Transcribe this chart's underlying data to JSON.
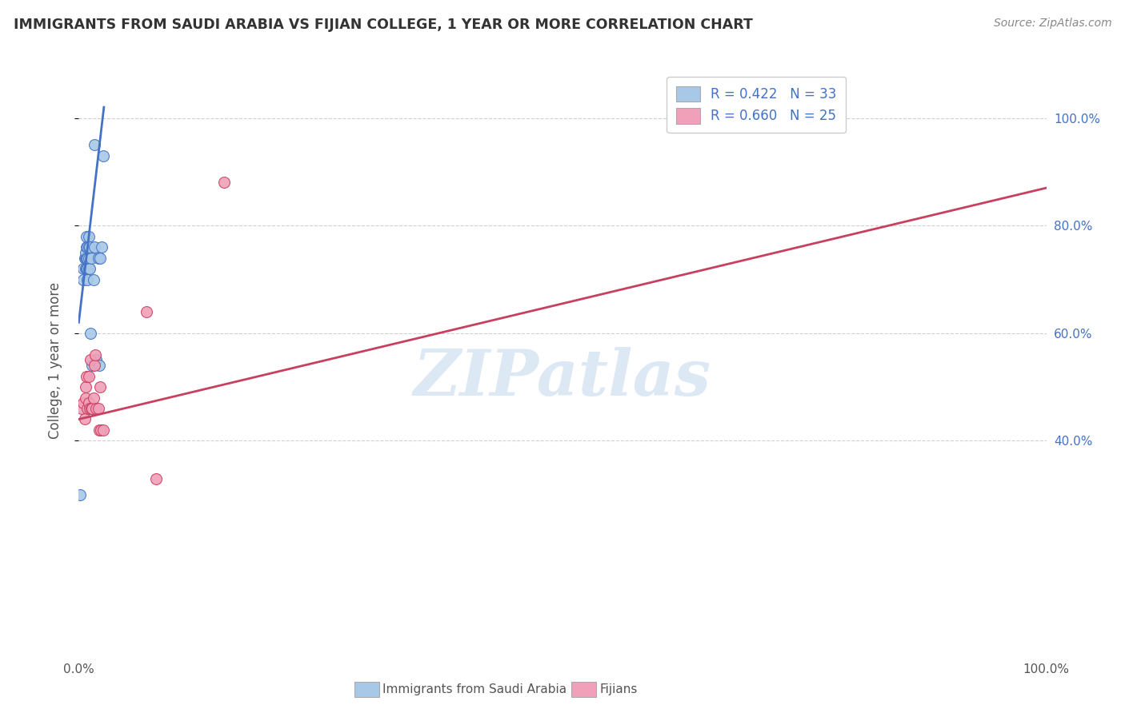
{
  "title": "IMMIGRANTS FROM SAUDI ARABIA VS FIJIAN COLLEGE, 1 YEAR OR MORE CORRELATION CHART",
  "source": "Source: ZipAtlas.com",
  "ylabel": "College, 1 year or more",
  "watermark": "ZIPatlas",
  "legend": {
    "blue_R": "R = 0.422",
    "blue_N": "N = 33",
    "pink_R": "R = 0.660",
    "pink_N": "N = 25",
    "label1": "Immigrants from Saudi Arabia",
    "label2": "Fijians"
  },
  "blue_color": "#a8c8e8",
  "blue_line_color": "#4472c4",
  "pink_color": "#f0a0b8",
  "pink_line_color": "#c84060",
  "legend_text_color": "#4472c4",
  "blue_scatter_x": [
    0.1,
    0.5,
    0.5,
    0.6,
    0.7,
    0.7,
    0.7,
    0.8,
    0.8,
    0.8,
    0.8,
    0.9,
    0.9,
    0.9,
    0.9,
    1.0,
    1.0,
    1.0,
    1.0,
    1.1,
    1.1,
    1.2,
    1.3,
    1.4,
    1.5,
    1.6,
    1.8,
    2.0,
    2.1,
    2.2,
    2.4,
    1.6,
    2.5
  ],
  "blue_scatter_y": [
    30.0,
    70.0,
    72.0,
    74.0,
    72.0,
    74.0,
    75.0,
    72.0,
    74.0,
    76.0,
    78.0,
    70.0,
    72.0,
    74.0,
    76.0,
    72.0,
    74.0,
    76.0,
    78.0,
    72.0,
    76.0,
    60.0,
    74.0,
    54.0,
    70.0,
    76.0,
    55.0,
    74.0,
    54.0,
    74.0,
    76.0,
    95.0,
    93.0
  ],
  "pink_scatter_x": [
    0.3,
    0.5,
    0.6,
    0.7,
    0.7,
    0.8,
    0.9,
    1.0,
    1.0,
    1.1,
    1.2,
    1.3,
    1.4,
    1.5,
    1.6,
    1.7,
    1.8,
    2.0,
    2.1,
    2.2,
    2.3,
    2.5,
    15.0,
    7.0,
    8.0
  ],
  "pink_scatter_y": [
    46.0,
    47.0,
    44.0,
    48.0,
    50.0,
    52.0,
    46.0,
    47.0,
    52.0,
    46.0,
    55.0,
    46.0,
    46.0,
    48.0,
    54.0,
    56.0,
    46.0,
    46.0,
    42.0,
    50.0,
    42.0,
    42.0,
    88.0,
    64.0,
    33.0
  ],
  "blue_trend_x": [
    0.0,
    2.6
  ],
  "blue_trend_y": [
    62.0,
    102.0
  ],
  "pink_trend_x": [
    0.0,
    100.0
  ],
  "pink_trend_y": [
    44.0,
    87.0
  ],
  "xlim": [
    0.0,
    100.0
  ],
  "ylim": [
    0.0,
    110.0
  ],
  "yticks": [
    40.0,
    60.0,
    80.0,
    100.0
  ],
  "ytick_labels": [
    "40.0%",
    "60.0%",
    "80.0%",
    "100.0%"
  ],
  "xticks": [
    0.0,
    20.0,
    40.0,
    60.0,
    80.0,
    100.0
  ],
  "xtick_labels": [
    "0.0%",
    "",
    "",
    "",
    "",
    "100.0%"
  ],
  "grid_color": "#d0d0d0",
  "background_color": "#ffffff"
}
